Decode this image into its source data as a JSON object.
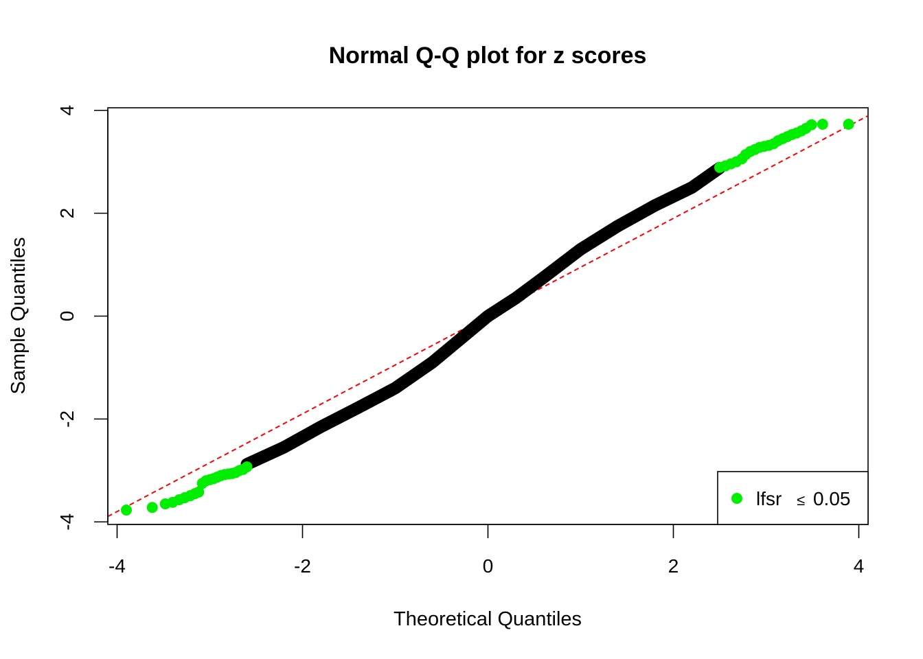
{
  "chart_data": {
    "type": "scatter",
    "title": "Normal Q-Q plot for z scores",
    "xlabel": "Theoretical Quantiles",
    "ylabel": "Sample Quantiles",
    "xlim": [
      -4.1,
      4.1
    ],
    "ylim": [
      -4.05,
      4.05
    ],
    "xticks": [
      -4,
      -2,
      0,
      2,
      4
    ],
    "yticks": [
      -4,
      -2,
      0,
      2,
      4
    ],
    "xtick_labels": [
      "-4",
      "-2",
      "0",
      "2",
      "4"
    ],
    "ytick_labels": [
      "-4",
      "-2",
      "0",
      "2",
      "4"
    ],
    "grid": false,
    "reference_line": {
      "slope": 0.95,
      "intercept": 0.0,
      "color": "#ff0000",
      "style": "dashed"
    },
    "series": [
      {
        "name": "",
        "color": "#000000",
        "curve": [
          [
            -2.6,
            -2.88
          ],
          [
            -2.2,
            -2.55
          ],
          [
            -1.8,
            -2.15
          ],
          [
            -1.4,
            -1.78
          ],
          [
            -1.0,
            -1.4
          ],
          [
            -0.6,
            -0.9
          ],
          [
            -0.2,
            -0.3
          ],
          [
            0.0,
            0.0
          ],
          [
            0.3,
            0.35
          ],
          [
            0.6,
            0.75
          ],
          [
            1.0,
            1.3
          ],
          [
            1.4,
            1.75
          ],
          [
            1.8,
            2.15
          ],
          [
            2.2,
            2.5
          ],
          [
            2.5,
            2.88
          ]
        ]
      },
      {
        "name": "lfsr ≤ 0.05",
        "color": "#00ee00",
        "points": [
          [
            -3.9,
            -3.77
          ],
          [
            -3.62,
            -3.72
          ],
          [
            -3.48,
            -3.65
          ],
          [
            -3.4,
            -3.62
          ],
          [
            -3.33,
            -3.57
          ],
          [
            -3.27,
            -3.53
          ],
          [
            -3.21,
            -3.49
          ],
          [
            -3.16,
            -3.45
          ],
          [
            -3.12,
            -3.42
          ],
          [
            -3.08,
            -3.25
          ],
          [
            -3.04,
            -3.2
          ],
          [
            -3.0,
            -3.18
          ],
          [
            -2.96,
            -3.16
          ],
          [
            -2.92,
            -3.13
          ],
          [
            -2.88,
            -3.1
          ],
          [
            -2.84,
            -3.08
          ],
          [
            -2.8,
            -3.07
          ],
          [
            -2.76,
            -3.06
          ],
          [
            -2.72,
            -3.04
          ],
          [
            -2.68,
            -3.0
          ],
          [
            -2.64,
            -2.98
          ],
          [
            -2.6,
            -2.93
          ],
          [
            2.5,
            2.89
          ],
          [
            2.56,
            2.92
          ],
          [
            2.62,
            2.96
          ],
          [
            2.68,
            3.0
          ],
          [
            2.74,
            3.06
          ],
          [
            2.78,
            3.14
          ],
          [
            2.83,
            3.2
          ],
          [
            2.88,
            3.24
          ],
          [
            2.93,
            3.28
          ],
          [
            2.98,
            3.3
          ],
          [
            3.03,
            3.32
          ],
          [
            3.08,
            3.35
          ],
          [
            3.13,
            3.41
          ],
          [
            3.18,
            3.45
          ],
          [
            3.23,
            3.49
          ],
          [
            3.28,
            3.53
          ],
          [
            3.33,
            3.56
          ],
          [
            3.38,
            3.6
          ],
          [
            3.43,
            3.65
          ],
          [
            3.49,
            3.72
          ],
          [
            3.61,
            3.73
          ],
          [
            3.89,
            3.73
          ]
        ]
      }
    ],
    "legend": {
      "position": "bottom-right",
      "label_text": "lfsr",
      "label_symbol": "≤",
      "label_value": "0.05",
      "marker_color": "#00ee00"
    }
  }
}
